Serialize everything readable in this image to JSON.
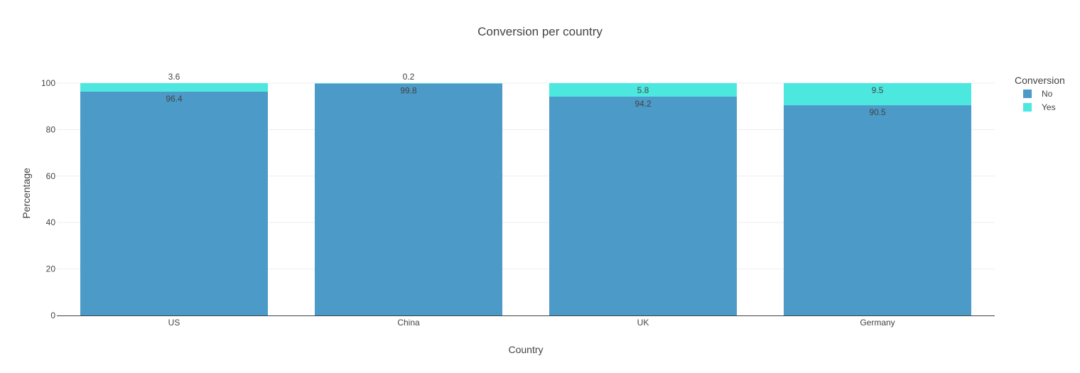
{
  "chart_data": {
    "type": "bar",
    "stacked": true,
    "title": "Conversion per country",
    "xlabel": "Country",
    "ylabel": "Percentage",
    "categories": [
      "US",
      "China",
      "UK",
      "Germany"
    ],
    "ylim": [
      0,
      100
    ],
    "yticks": [
      0,
      20,
      40,
      60,
      80,
      100
    ],
    "grid": true,
    "legend": {
      "title": "Conversion",
      "placement": "right"
    },
    "series": [
      {
        "name": "No",
        "values": [
          96.4,
          99.8,
          94.2,
          90.5
        ],
        "color": "#4b9ac8"
      },
      {
        "name": "Yes",
        "values": [
          3.6,
          0.2,
          5.8,
          9.5
        ],
        "color": "#4ce8e0"
      }
    ]
  }
}
